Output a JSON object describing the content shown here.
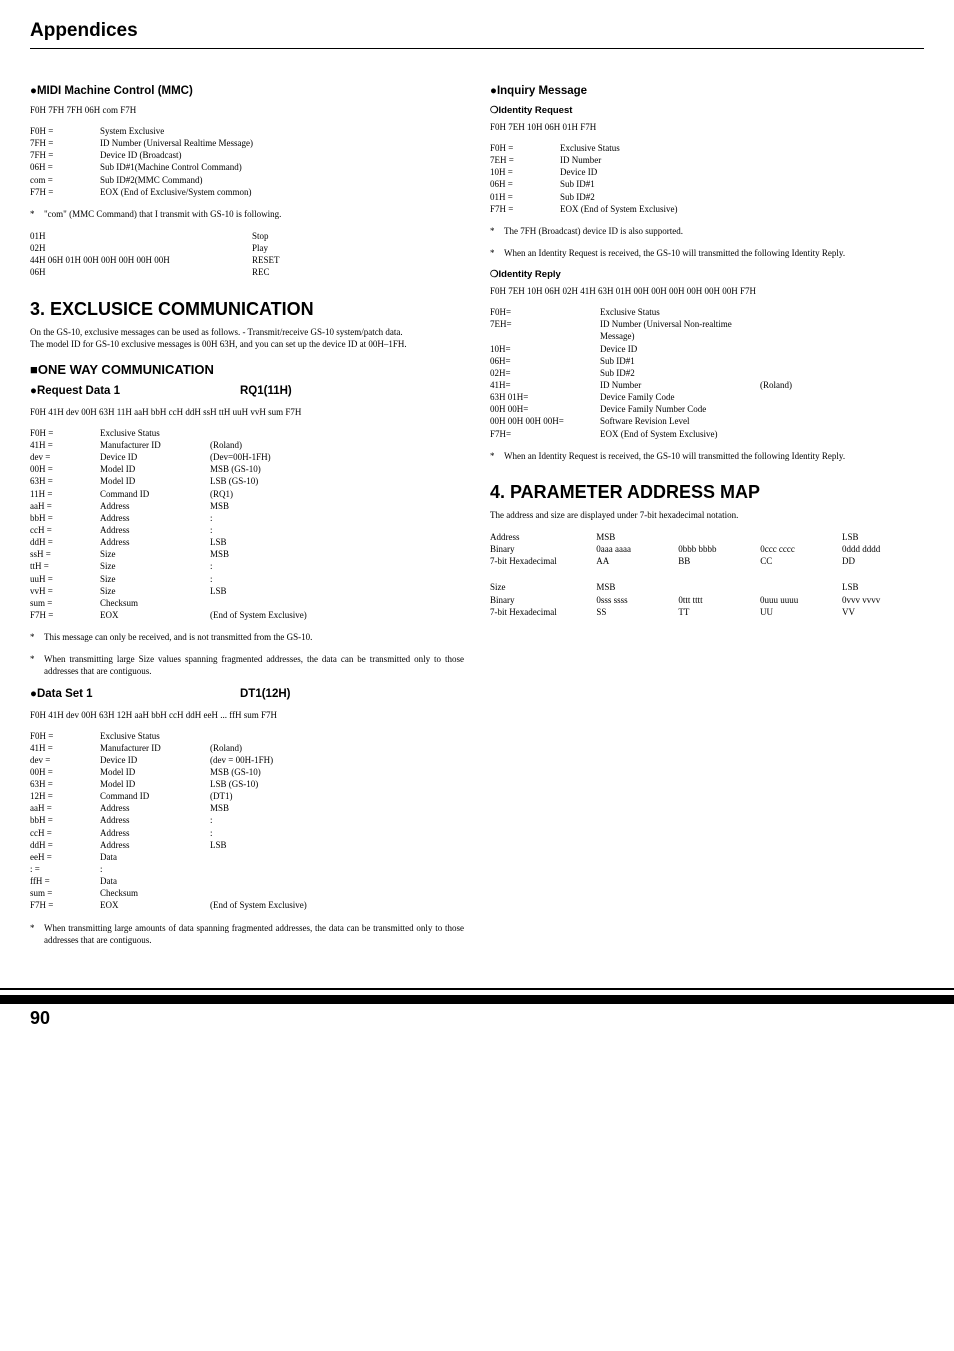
{
  "page_title": "Appendices",
  "page_number": "90",
  "left": {
    "mmc": {
      "heading": "●MIDI Machine Control (MMC)",
      "hexline": "F0H 7FH 7FH 06H com F7H",
      "rows": [
        [
          "F0H =",
          "System Exclusive"
        ],
        [
          "7FH =",
          "ID Number (Universal Realtime Message)"
        ],
        [
          "7FH =",
          "Device ID (Broadcast)"
        ],
        [
          "06H =",
          "Sub ID#1(Machine Control Command)"
        ],
        [
          "com =",
          "Sub ID#2(MMC Command)"
        ],
        [
          "F7H =",
          "EOX (End of Exclusive/System common)"
        ]
      ],
      "note": "\"com\" (MMC Command) that I transmit with GS-10 is following.",
      "cmds": [
        [
          "01H",
          "Stop"
        ],
        [
          "02H",
          "Play"
        ],
        [
          "44H 06H 01H 00H 00H 00H 00H 00H",
          "RESET"
        ],
        [
          "06H",
          "REC"
        ]
      ]
    },
    "sec3": {
      "heading": "3. EXCLUSICE COMMUNICATION",
      "para": "On the GS-10, exclusive messages can be used as follows. - Transmit/receive GS-10 system/patch data.\nThe model ID for GS-10 exclusive messages is 00H 63H, and you can set up the device ID at 00H–1FH.",
      "oneway": "■ONE WAY COMMUNICATION",
      "req1_label": "●Request Data 1",
      "req1_code": "RQ1(11H)",
      "req1_hex": "F0H 41H dev 00H 63H 11H aaH bbH ccH ddH ssH ttH uuH vvH sum F7H",
      "req1_rows": [
        [
          "F0H =",
          "Exclusive Status",
          ""
        ],
        [
          "41H =",
          "Manufacturer ID",
          "(Roland)"
        ],
        [
          "dev =",
          "Device ID",
          "(Dev=00H-1FH)"
        ],
        [
          "00H =",
          "Model ID",
          "MSB (GS-10)"
        ],
        [
          "63H =",
          "Model ID",
          "LSB (GS-10)"
        ],
        [
          "11H =",
          "Command ID",
          "(RQ1)"
        ],
        [
          "aaH =",
          "Address",
          "MSB"
        ],
        [
          "bbH =",
          "Address",
          ":"
        ],
        [
          "ccH =",
          "Address",
          ":"
        ],
        [
          "ddH =",
          "Address",
          "LSB"
        ],
        [
          "ssH =",
          "Size",
          "MSB"
        ],
        [
          "ttH =",
          "Size",
          ":"
        ],
        [
          "uuH =",
          "Size",
          ":"
        ],
        [
          "vvH =",
          "Size",
          "LSB"
        ],
        [
          "sum =",
          "Checksum",
          ""
        ],
        [
          "F7H =",
          "EOX",
          "(End of System Exclusive)"
        ]
      ],
      "req1_note1": "This message can only be received, and is not transmitted from the GS-10.",
      "req1_note2": "When transmitting large Size values spanning fragmented addresses, the data can be transmitted only to those addresses that are contiguous.",
      "ds1_label": "●Data Set 1",
      "ds1_code": "DT1(12H)",
      "ds1_hex": "F0H 41H dev 00H 63H 12H aaH bbH ccH ddH eeH ... ffH sum F7H",
      "ds1_rows": [
        [
          "F0H =",
          "Exclusive Status",
          ""
        ],
        [
          "41H =",
          "Manufacturer ID",
          "(Roland)"
        ],
        [
          "dev =",
          "Device ID",
          "(dev = 00H-1FH)"
        ],
        [
          "00H =",
          "Model ID",
          "MSB (GS-10)"
        ],
        [
          "63H =",
          "Model ID",
          "LSB (GS-10)"
        ],
        [
          "12H =",
          "Command ID",
          "(DT1)"
        ],
        [
          "aaH =",
          "Address",
          "MSB"
        ],
        [
          "bbH =",
          "Address",
          ":"
        ],
        [
          "ccH =",
          "Address",
          ":"
        ],
        [
          "ddH =",
          "Address",
          "LSB"
        ],
        [
          "eeH =",
          "Data",
          ""
        ],
        [
          " :  =",
          ":",
          ""
        ],
        [
          "ffH =",
          "Data",
          ""
        ],
        [
          "sum =",
          "Checksum",
          ""
        ],
        [
          "F7H =",
          "EOX",
          "(End of System Exclusive)"
        ]
      ],
      "ds1_note": "When transmitting large amounts of data spanning fragmented addresses, the data can be transmitted only to those addresses that are contiguous."
    }
  },
  "right": {
    "inq": {
      "heading": "●Inquiry Message",
      "sub1": "❍Identity Request",
      "hex1": "F0H 7EH 10H 06H 01H F7H",
      "rows1": [
        [
          "F0H =",
          "Exclusive Status"
        ],
        [
          "7EH =",
          "ID Number"
        ],
        [
          "10H =",
          "Device ID"
        ],
        [
          "06H =",
          "Sub ID#1"
        ],
        [
          "01H =",
          "Sub ID#2"
        ],
        [
          "F7H =",
          "EOX (End of System Exclusive)"
        ]
      ],
      "note1a": "The 7FH (Broadcast) device ID is also supported.",
      "note1b": "When an Identity Request is received, the GS-10 will transmitted the following Identity Reply.",
      "sub2": "❍Identity Reply",
      "hex2": "F0H 7EH 10H 06H 02H 41H 63H 01H 00H 00H 00H 00H 00H 00H F7H",
      "rows2": [
        [
          "F0H=",
          "Exclusive Status",
          ""
        ],
        [
          "7EH=",
          "ID Number (Universal Non-realtime Message)",
          ""
        ],
        [
          "10H=",
          "Device ID",
          ""
        ],
        [
          "06H=",
          "Sub ID#1",
          ""
        ],
        [
          "02H=",
          "Sub ID#2",
          ""
        ],
        [
          "41H=",
          "ID Number",
          "(Roland)"
        ],
        [
          "63H 01H=",
          "Device Family Code",
          ""
        ],
        [
          "00H 00H=",
          "Device Family Number Code",
          ""
        ],
        [
          "00H 00H 00H 00H=",
          "Software Revision Level",
          ""
        ],
        [
          "F7H=",
          "EOX (End of System Exclusive)",
          ""
        ]
      ],
      "note2": "When an Identity Request is received, the GS-10 will transmitted the following Identity Reply."
    },
    "sec4": {
      "heading": "4. PARAMETER ADDRESS MAP",
      "para": "The address and size are displayed under 7-bit hexadecimal notation.",
      "t1": [
        [
          "Address",
          "MSB",
          "",
          "",
          "LSB"
        ],
        [
          "Binary",
          "0aaa aaaa",
          "0bbb bbbb",
          "0ccc cccc",
          "0ddd dddd"
        ],
        [
          "7-bit Hexadecimal",
          "AA",
          "BB",
          "CC",
          "DD"
        ]
      ],
      "t2": [
        [
          "Size",
          "MSB",
          "",
          "",
          "LSB"
        ],
        [
          "Binary",
          "0sss ssss",
          "0ttt tttt",
          "0uuu uuuu",
          "0vvv vvvv"
        ],
        [
          "7-bit Hexadecimal",
          "SS",
          "TT",
          "UU",
          "VV"
        ]
      ]
    }
  }
}
